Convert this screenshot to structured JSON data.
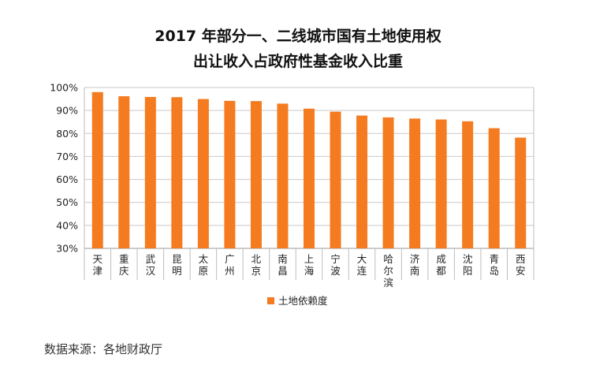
{
  "chart_data": {
    "type": "bar",
    "title_lines": [
      "2017 年部分一、二线城市国有土地使用权",
      "出让收入占政府性基金收入比重"
    ],
    "categories": [
      "天津",
      "重庆",
      "武汉",
      "昆明",
      "太原",
      "广州",
      "北京",
      "南昌",
      "上海",
      "宁波",
      "大连",
      "哈尔滨",
      "济南",
      "成都",
      "沈阳",
      "青岛",
      "西安"
    ],
    "series": [
      {
        "name": "土地依赖度",
        "values": [
          98,
          96.2,
          95.9,
          95.8,
          95,
          94.2,
          94.1,
          93,
          90.8,
          89.5,
          87.8,
          87,
          86.5,
          86.1,
          85.3,
          82.3,
          78.2
        ]
      }
    ],
    "ylim": [
      30,
      100
    ],
    "yticks": [
      "30%",
      "40%",
      "50%",
      "60%",
      "70%",
      "80%",
      "90%",
      "100%"
    ],
    "grid": true,
    "legend_position": "bottom",
    "bar_color": "#F47B20"
  },
  "source": "数据来源：各地财政厅"
}
